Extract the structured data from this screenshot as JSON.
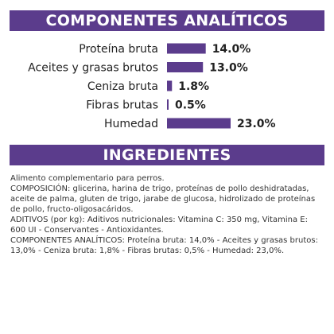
{
  "sections": {
    "analytic_title": "COMPONENTES ANALÍTICOS",
    "ingredients_title": "INGREDIENTES"
  },
  "colors": {
    "accent": "#5b3c8c",
    "text": "#222222"
  },
  "chart_data": {
    "type": "bar",
    "orientation": "horizontal",
    "title": "COMPONENTES ANALÍTICOS",
    "categories": [
      "Proteína bruta",
      "Aceites y grasas brutos",
      "Ceniza bruta",
      "Fibras brutas",
      "Humedad"
    ],
    "values": [
      14.0,
      13.0,
      1.8,
      0.5,
      23.0
    ],
    "value_labels": [
      "14.0%",
      "13.0%",
      "1.8%",
      "0.5%",
      "23.0%"
    ],
    "unit": "%",
    "xlim": [
      0,
      23.0
    ],
    "grid": false,
    "legend": "none",
    "bar_color": "#5b3c8c"
  },
  "ingredients": {
    "lines": [
      "Alimento complementario para perros.",
      "COMPOSICIÓN: glicerina, harina de trigo, proteínas de pollo deshidratadas, aceite de palma, gluten de trigo, jarabe de glucosa, hidrolizado de proteínas de pollo, fructo-oligosacáridos.",
      "ADITIVOS (por kg): Aditivos nutricionales: Vitamina C: 350 mg, Vitamina E: 600 UI - Conservantes - Antioxidantes.",
      "COMPONENTES ANALÍTICOS: Proteína bruta: 14,0% - Aceites y grasas brutos: 13,0% - Ceniza bruta: 1,8% - Fibras brutas: 0,5% - Humedad: 23,0%."
    ]
  }
}
